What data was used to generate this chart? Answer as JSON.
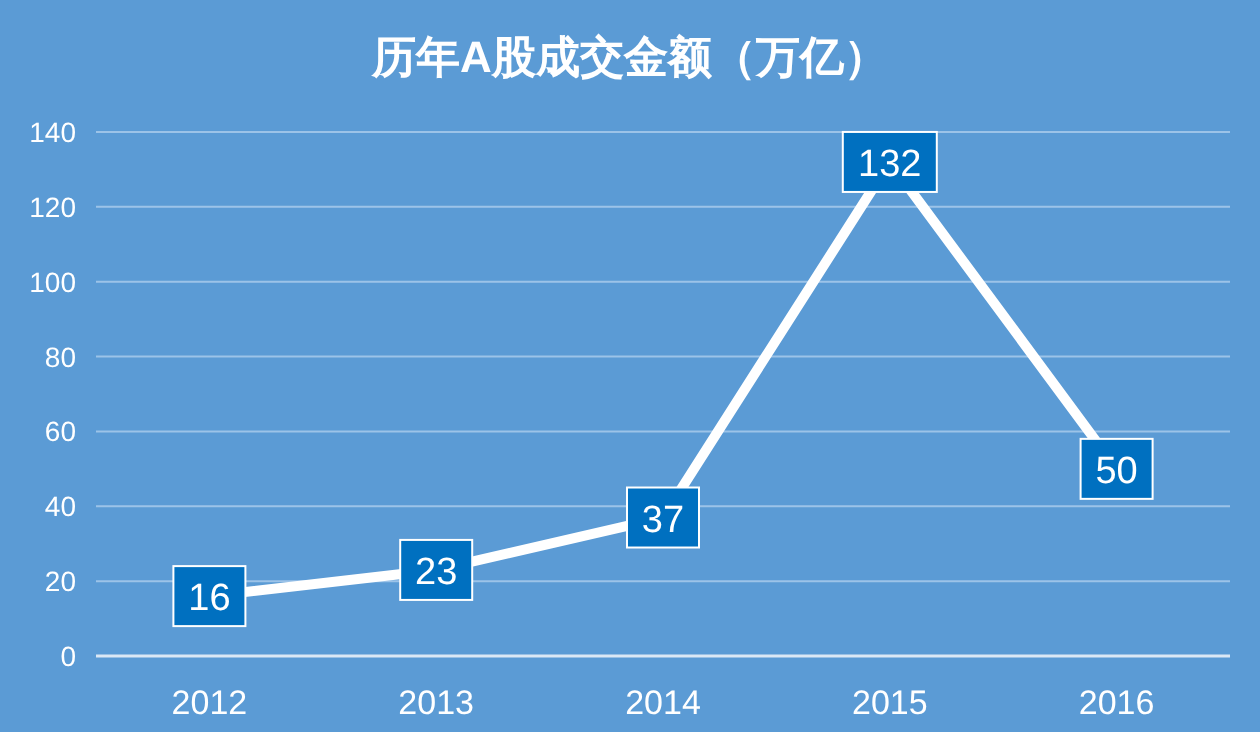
{
  "chart_data": {
    "type": "line",
    "title": "历年A股成交金额（万亿）",
    "categories": [
      "2012",
      "2013",
      "2014",
      "2015",
      "2016"
    ],
    "series": [
      {
        "color": "#ffffff",
        "values": [
          16,
          23,
          37,
          132,
          50
        ]
      }
    ],
    "ylim": [
      0,
      140
    ],
    "yticks": [
      0,
      20,
      40,
      60,
      80,
      100,
      120,
      140
    ],
    "grid": "y",
    "marker": "square",
    "line_style": "solid",
    "data_labels": true
  }
}
